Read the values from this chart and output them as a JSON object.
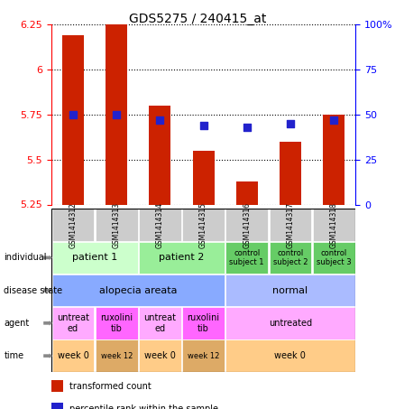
{
  "title": "GDS5275 / 240415_at",
  "samples": [
    "GSM1414312",
    "GSM1414313",
    "GSM1414314",
    "GSM1414315",
    "GSM1414316",
    "GSM1414317",
    "GSM1414318"
  ],
  "red_values": [
    6.19,
    6.25,
    5.8,
    5.55,
    5.38,
    5.6,
    5.75
  ],
  "blue_values": [
    50,
    50,
    47,
    44,
    43,
    45,
    47
  ],
  "ylim_left": [
    5.25,
    6.25
  ],
  "ylim_right": [
    0,
    100
  ],
  "yticks_left": [
    5.25,
    5.5,
    5.75,
    6.0,
    6.25
  ],
  "yticks_right": [
    0,
    25,
    50,
    75,
    100
  ],
  "ytick_labels_left": [
    "5.25",
    "5.5",
    "5.75",
    "6",
    "6.25"
  ],
  "ytick_labels_right": [
    "0",
    "25",
    "50",
    "75",
    "100%"
  ],
  "bar_color": "#cc2200",
  "dot_color": "#2222cc",
  "grid_color": "#000000",
  "annotation_rows": [
    {
      "label": "individual",
      "cells": [
        {
          "text": "patient 1",
          "span": [
            0,
            1
          ],
          "color": "#ccffcc",
          "fontsize": 8
        },
        {
          "text": "patient 2",
          "span": [
            2,
            3
          ],
          "color": "#99ee99",
          "fontsize": 8
        },
        {
          "text": "control\nsubject 1",
          "span": [
            4,
            4
          ],
          "color": "#66cc66",
          "fontsize": 6
        },
        {
          "text": "control\nsubject 2",
          "span": [
            5,
            5
          ],
          "color": "#66cc66",
          "fontsize": 6
        },
        {
          "text": "control\nsubject 3",
          "span": [
            6,
            6
          ],
          "color": "#66cc66",
          "fontsize": 6
        }
      ]
    },
    {
      "label": "disease state",
      "cells": [
        {
          "text": "alopecia areata",
          "span": [
            0,
            3
          ],
          "color": "#88aaff",
          "fontsize": 8
        },
        {
          "text": "normal",
          "span": [
            4,
            6
          ],
          "color": "#aabbff",
          "fontsize": 8
        }
      ]
    },
    {
      "label": "agent",
      "cells": [
        {
          "text": "untreat\ned",
          "span": [
            0,
            0
          ],
          "color": "#ffaaff",
          "fontsize": 7
        },
        {
          "text": "ruxolini\ntib",
          "span": [
            1,
            1
          ],
          "color": "#ff66ff",
          "fontsize": 7
        },
        {
          "text": "untreat\ned",
          "span": [
            2,
            2
          ],
          "color": "#ffaaff",
          "fontsize": 7
        },
        {
          "text": "ruxolini\ntib",
          "span": [
            3,
            3
          ],
          "color": "#ff66ff",
          "fontsize": 7
        },
        {
          "text": "untreated",
          "span": [
            4,
            6
          ],
          "color": "#ffaaff",
          "fontsize": 7
        }
      ]
    },
    {
      "label": "time",
      "cells": [
        {
          "text": "week 0",
          "span": [
            0,
            0
          ],
          "color": "#ffcc88",
          "fontsize": 7
        },
        {
          "text": "week 12",
          "span": [
            1,
            1
          ],
          "color": "#ddaa66",
          "fontsize": 6
        },
        {
          "text": "week 0",
          "span": [
            2,
            2
          ],
          "color": "#ffcc88",
          "fontsize": 7
        },
        {
          "text": "week 12",
          "span": [
            3,
            3
          ],
          "color": "#ddaa66",
          "fontsize": 6
        },
        {
          "text": "week 0",
          "span": [
            4,
            6
          ],
          "color": "#ffcc88",
          "fontsize": 7
        }
      ]
    }
  ],
  "legend_items": [
    {
      "color": "#cc2200",
      "label": "transformed count"
    },
    {
      "color": "#2222cc",
      "label": "percentile rank within the sample"
    }
  ]
}
